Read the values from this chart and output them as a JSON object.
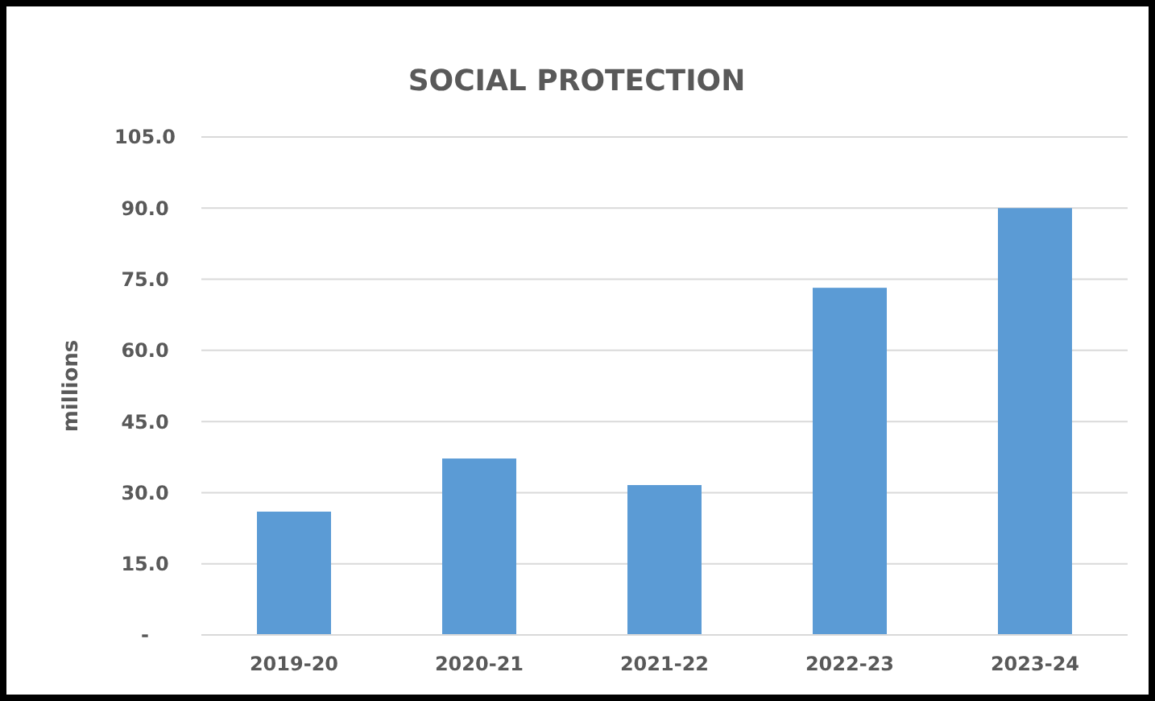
{
  "chart_data": {
    "type": "bar",
    "title": "SOCIAL PROTECTION",
    "ylabel": "millions",
    "categories": [
      "2019-20",
      "2020-21",
      "2021-22",
      "2022-23",
      "2023-24"
    ],
    "values": [
      26,
      37.2,
      31.6,
      73.2,
      90
    ],
    "color": "#5b9bd5",
    "ylim": [
      0,
      105
    ],
    "yticks": [
      {
        "value": 0,
        "label": "-"
      },
      {
        "value": 15,
        "label": "15.0"
      },
      {
        "value": 30,
        "label": "30.0"
      },
      {
        "value": 45,
        "label": "45.0"
      },
      {
        "value": 60,
        "label": "60.0"
      },
      {
        "value": 75,
        "label": "75.0"
      },
      {
        "value": 90,
        "label": "90.0"
      },
      {
        "value": 105,
        "label": "105.0"
      }
    ],
    "grid": "y"
  }
}
